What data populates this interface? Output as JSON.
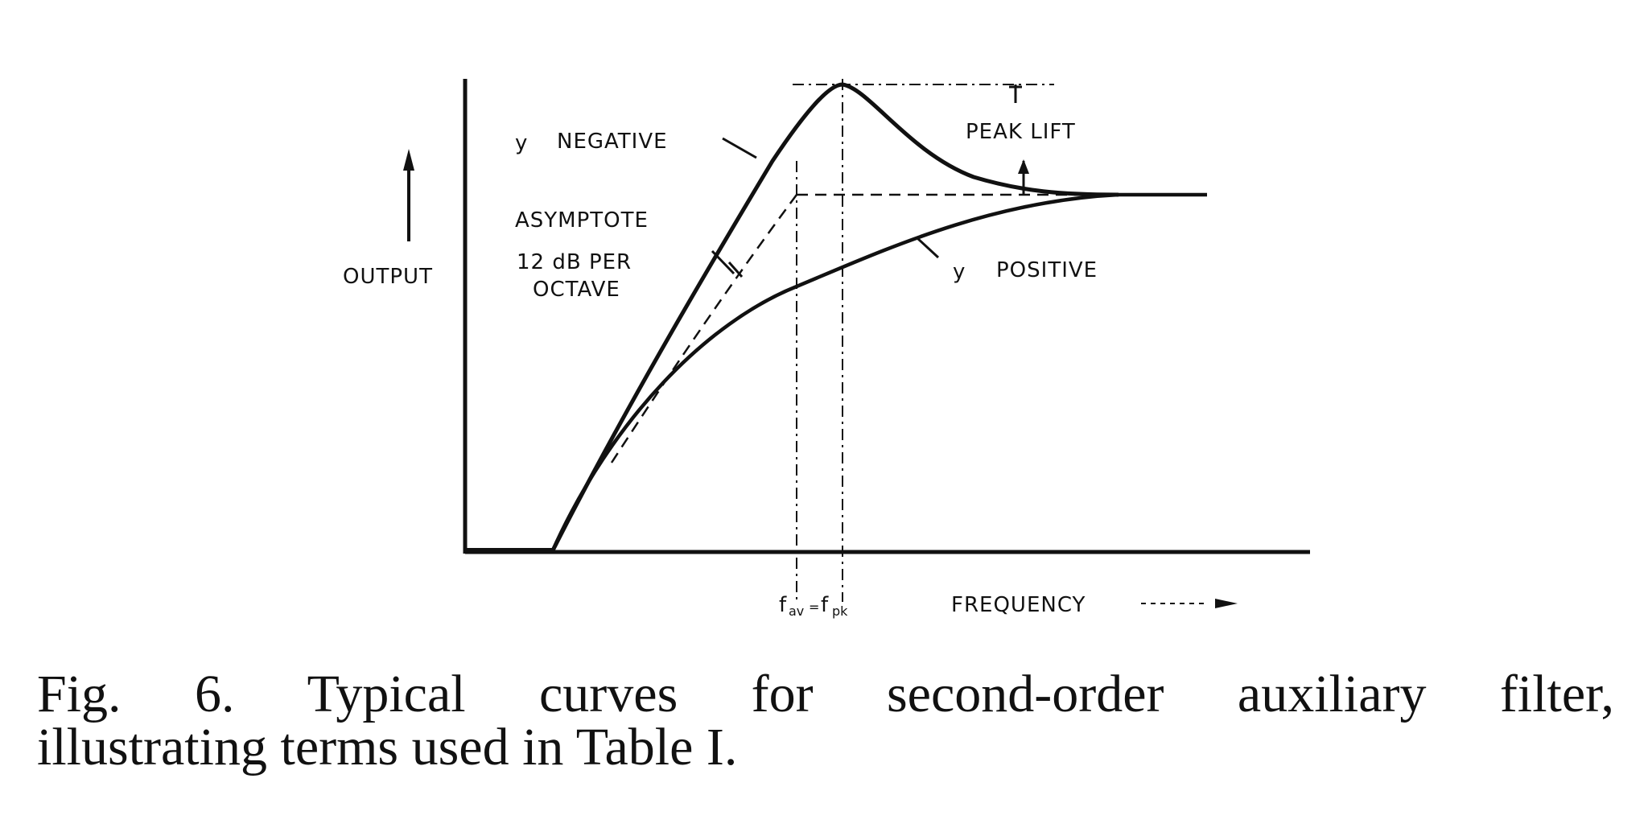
{
  "diagram": {
    "ylabel": "OUTPUT",
    "xlabel": "FREQUENCY",
    "xtick": "f",
    "xtick_sub1": "av",
    "xtick_eq": "=",
    "xtick_sub2": "pk",
    "curve_negative": {
      "symbol": "y",
      "label": "NEGATIVE"
    },
    "curve_positive": {
      "symbol": "y",
      "label": "POSITIVE"
    },
    "asymptote": {
      "line1": "ASYMPTOTE",
      "line2": "12 dB  PER",
      "line3": "OCTAVE"
    },
    "peak_lift": "PEAK LIFT"
  },
  "caption": {
    "line1": "Fig. 6. Typical curves for second-order auxiliary filter,",
    "line2": "illustrating terms used in Table I."
  }
}
